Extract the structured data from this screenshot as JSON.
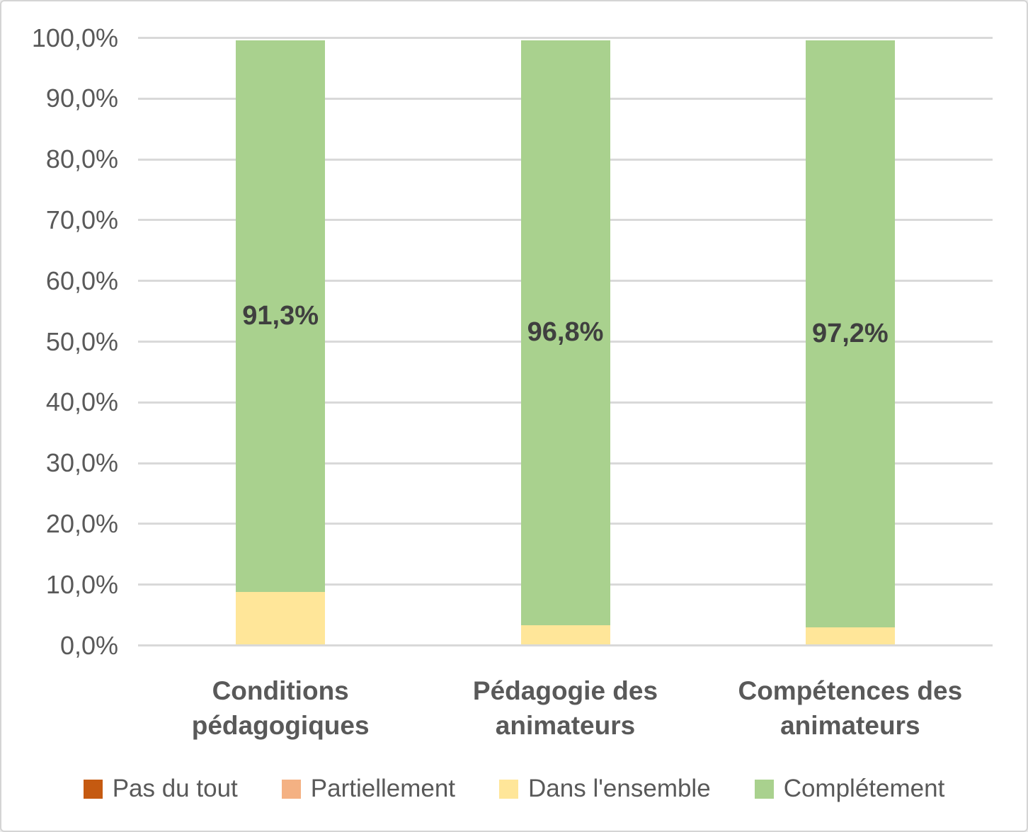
{
  "frame": {
    "background": "#ffffff",
    "border_color": "#d4d4d4"
  },
  "chart_data": {
    "type": "bar",
    "stacked": true,
    "percent_axis": true,
    "title": "",
    "xlabel": "",
    "ylabel": "",
    "categories": [
      "Conditions pédagogiques",
      "Pédagogie des animateurs",
      "Compétences des animateurs"
    ],
    "series": [
      {
        "name": "Pas du tout",
        "color": "#C55A11",
        "values": [
          0,
          0,
          0
        ]
      },
      {
        "name": "Partiellement",
        "color": "#F4B183",
        "values": [
          0,
          0,
          0
        ]
      },
      {
        "name": "Dans l'ensemble",
        "color": "#FFE699",
        "values": [
          8.7,
          3.2,
          2.8
        ]
      },
      {
        "name": "Complétement",
        "color": "#A9D18E",
        "values": [
          91.3,
          96.8,
          97.2
        ]
      }
    ],
    "data_labels": {
      "series": "Complétement",
      "labels": [
        "91,3%",
        "96,8%",
        "97,2%"
      ]
    },
    "ylim": [
      0,
      100
    ],
    "yticks": [
      0,
      10,
      20,
      30,
      40,
      50,
      60,
      70,
      80,
      90,
      100
    ],
    "ytick_labels": [
      "0,0%",
      "10,0%",
      "20,0%",
      "30,0%",
      "40,0%",
      "50,0%",
      "60,0%",
      "70,0%",
      "80,0%",
      "90,0%",
      "100,0%"
    ],
    "grid": true,
    "gridline_color": "#D9D9D9",
    "legend_position": "bottom",
    "axis_text_color": "#595959",
    "data_label_color": "#3F3F3F"
  }
}
